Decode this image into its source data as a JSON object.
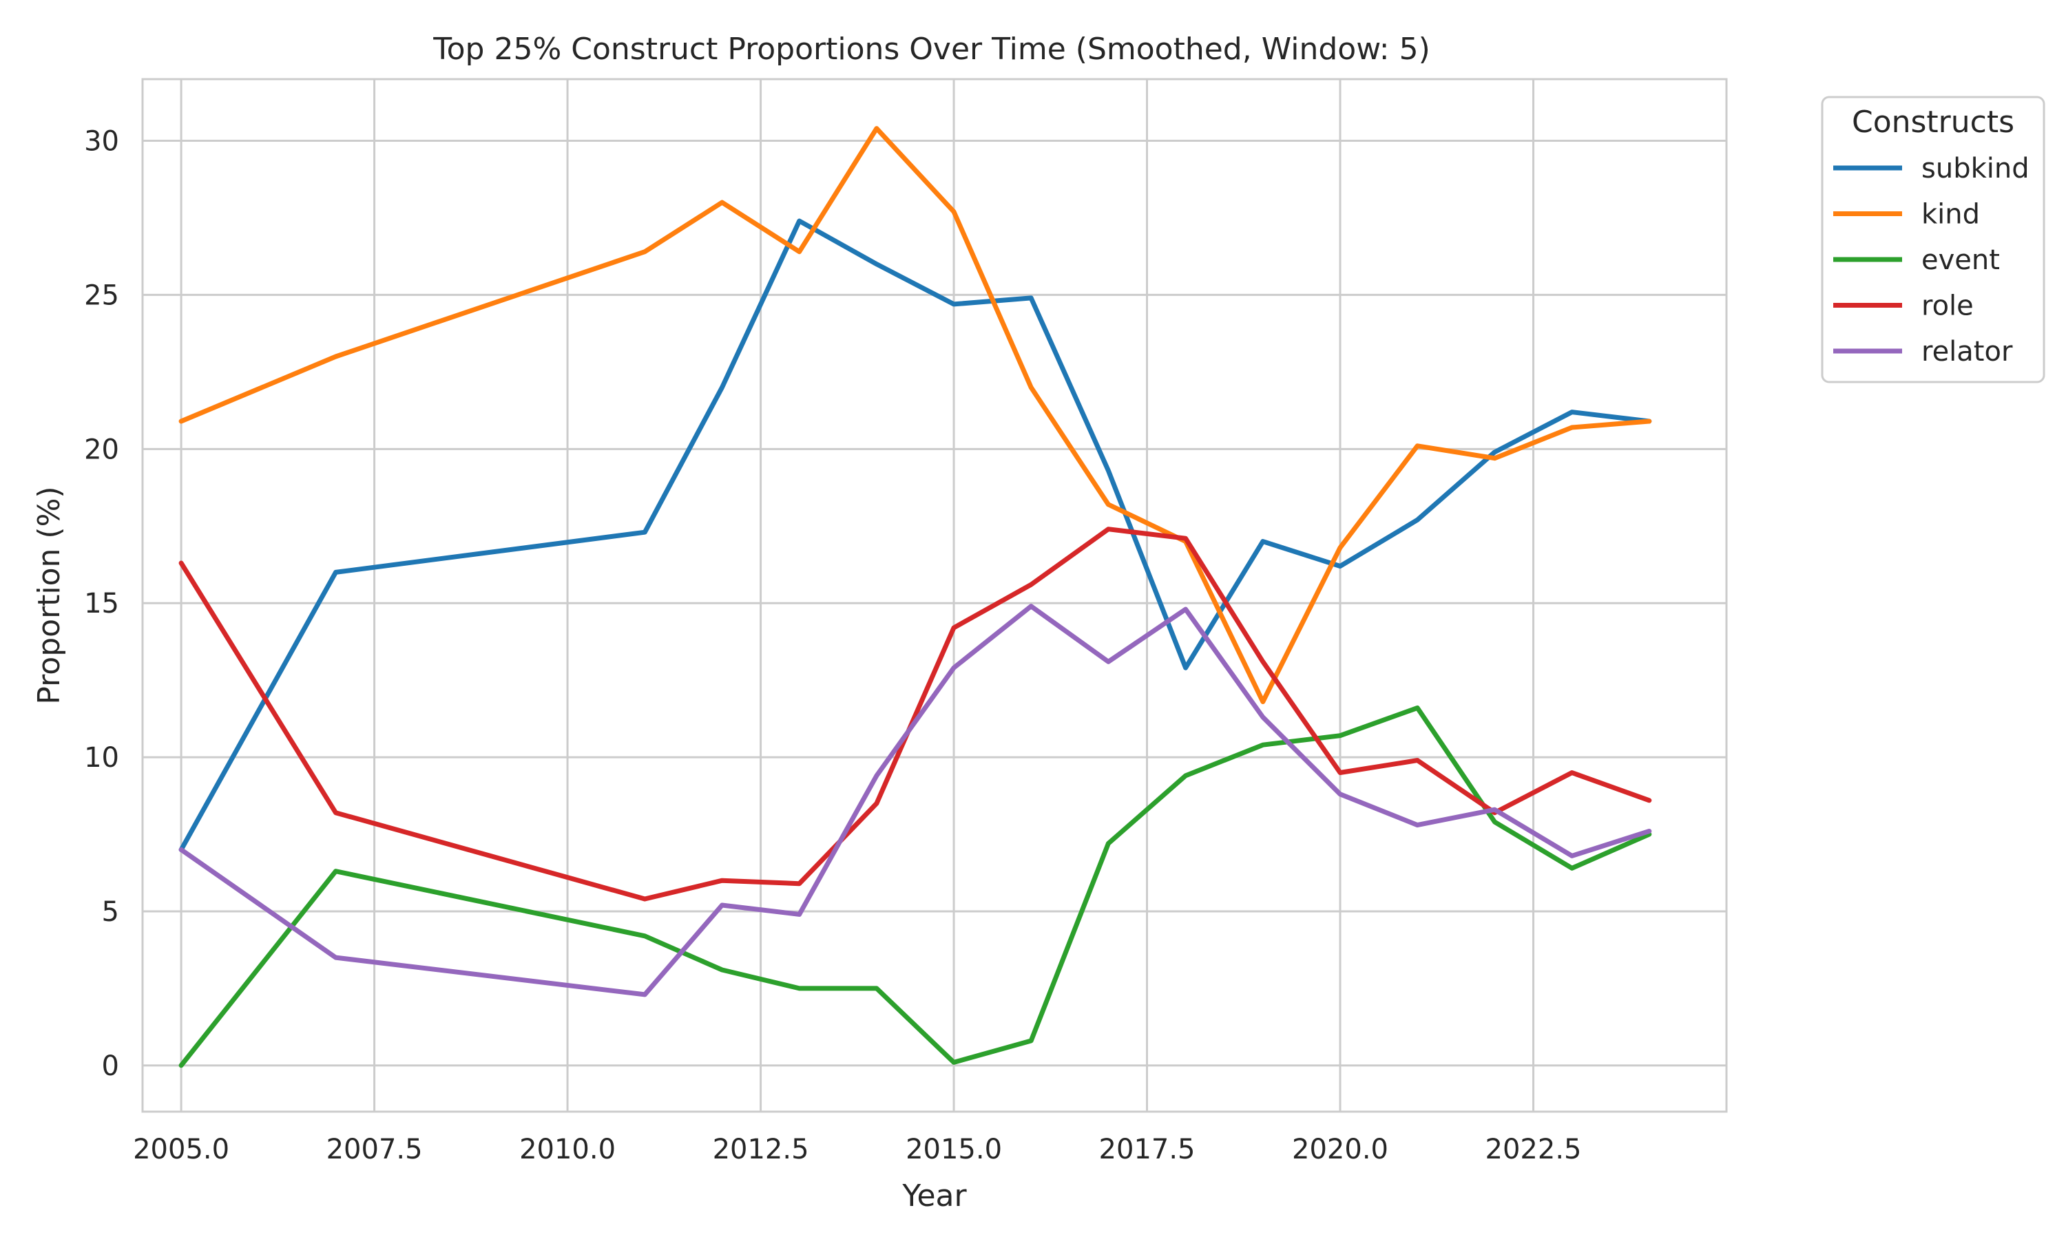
{
  "chart_data": {
    "type": "line",
    "title": "Top 25% Construct Proportions Over Time (Smoothed, Window: 5)",
    "xlabel": "Year",
    "ylabel": "Proportion (%)",
    "xlim": [
      2004.5,
      2025.0
    ],
    "ylim": [
      -1.5,
      32.0
    ],
    "xticks": [
      2005.0,
      2007.5,
      2010.0,
      2012.5,
      2015.0,
      2017.5,
      2020.0,
      2022.5
    ],
    "xtick_labels": [
      "2005.0",
      "2007.5",
      "2010.0",
      "2012.5",
      "2015.0",
      "2017.5",
      "2020.0",
      "2022.5"
    ],
    "yticks": [
      0,
      5,
      10,
      15,
      20,
      25,
      30
    ],
    "ytick_labels": [
      "0",
      "5",
      "10",
      "15",
      "20",
      "25",
      "30"
    ],
    "grid": true,
    "legend": {
      "title": "Constructs",
      "placement": "outside-top-right"
    },
    "series": [
      {
        "name": "subkind",
        "color": "#1f77b4",
        "x": [
          2005,
          2007,
          2011,
          2012,
          2013,
          2014,
          2015,
          2016,
          2017,
          2018,
          2019,
          2020,
          2021,
          2022,
          2023,
          2024
        ],
        "y": [
          7.0,
          16.0,
          17.3,
          22.0,
          27.4,
          26.0,
          24.7,
          24.9,
          19.3,
          12.9,
          17.0,
          16.2,
          17.7,
          19.9,
          21.2,
          20.9
        ]
      },
      {
        "name": "kind",
        "color": "#ff7f0e",
        "x": [
          2005,
          2007,
          2011,
          2012,
          2013,
          2014,
          2015,
          2016,
          2017,
          2018,
          2019,
          2020,
          2021,
          2022,
          2023,
          2024
        ],
        "y": [
          20.9,
          23.0,
          26.4,
          28.0,
          26.4,
          30.4,
          27.7,
          22.0,
          18.2,
          17.0,
          11.8,
          16.8,
          20.1,
          19.7,
          20.7,
          20.9
        ]
      },
      {
        "name": "event",
        "color": "#2ca02c",
        "x": [
          2005,
          2007,
          2011,
          2012,
          2013,
          2014,
          2015,
          2016,
          2017,
          2018,
          2019,
          2020,
          2021,
          2022,
          2023,
          2024
        ],
        "y": [
          0.0,
          6.3,
          4.2,
          3.1,
          2.5,
          2.5,
          0.1,
          0.8,
          7.2,
          9.4,
          10.4,
          10.7,
          11.6,
          7.9,
          6.4,
          7.5
        ]
      },
      {
        "name": "role",
        "color": "#d62728",
        "x": [
          2005,
          2007,
          2011,
          2012,
          2013,
          2014,
          2015,
          2016,
          2017,
          2018,
          2019,
          2020,
          2021,
          2022,
          2023,
          2024
        ],
        "y": [
          16.3,
          8.2,
          5.4,
          6.0,
          5.9,
          8.5,
          14.2,
          15.6,
          17.4,
          17.1,
          13.1,
          9.5,
          9.9,
          8.2,
          9.5,
          8.6
        ]
      },
      {
        "name": "relator",
        "color": "#9467bd",
        "x": [
          2005,
          2007,
          2011,
          2012,
          2013,
          2014,
          2015,
          2016,
          2017,
          2018,
          2019,
          2020,
          2021,
          2022,
          2023,
          2024
        ],
        "y": [
          7.0,
          3.5,
          2.3,
          5.2,
          4.9,
          9.4,
          12.9,
          14.9,
          13.1,
          14.8,
          11.3,
          8.8,
          7.8,
          8.3,
          6.8,
          7.6
        ]
      }
    ]
  }
}
